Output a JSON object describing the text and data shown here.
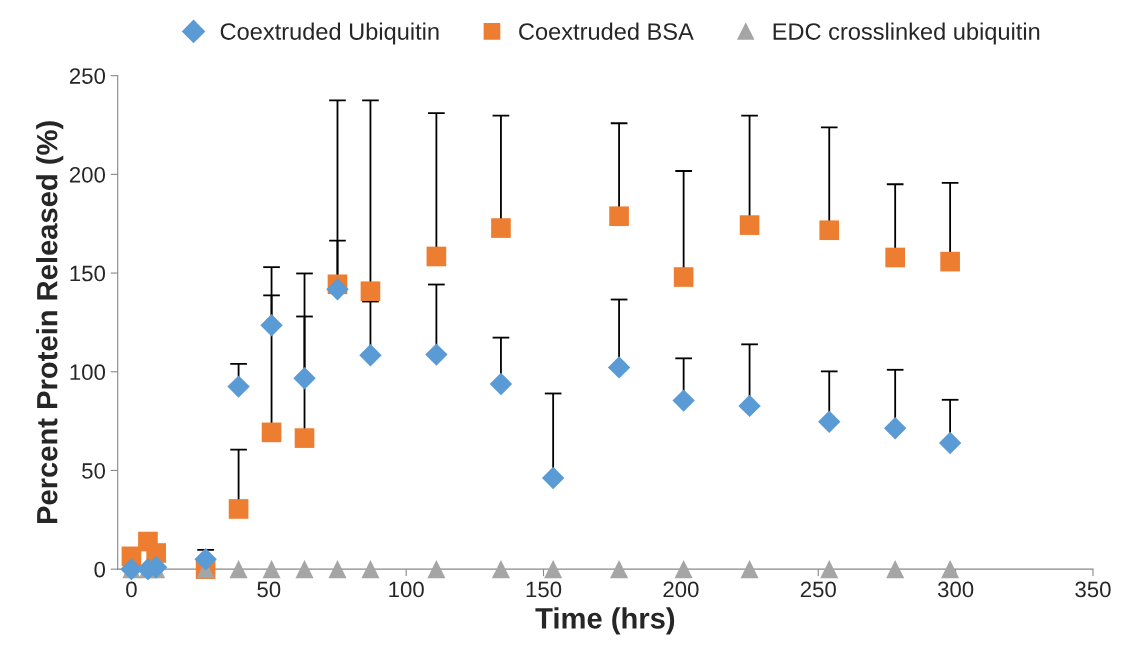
{
  "chart_data": {
    "type": "scatter",
    "xlabel": "Time (hrs)",
    "ylabel": "Percent Protein Released (%)",
    "x": [
      0,
      6,
      9,
      27,
      39,
      51,
      63,
      75,
      87,
      111,
      134.5,
      153.5,
      177.5,
      201,
      225,
      254,
      278,
      298
    ],
    "series": [
      {
        "name": "Coextruded Ubiquitin",
        "color": "#5b9bd5",
        "marker": "diamond",
        "values": [
          0,
          0,
          1,
          5,
          92.5,
          123.6,
          96.7,
          141.8,
          108.4,
          108.7,
          93.8,
          46.2,
          102.2,
          85.4,
          82.7,
          74.7,
          71.4,
          63.9
        ],
        "errors": [
          null,
          null,
          null,
          [
            5,
            9.8
          ],
          [
            92.5,
            104
          ],
          [
            123.6,
            138.7
          ],
          [
            96.7,
            128
          ],
          [
            141.8,
            166.4
          ],
          [
            108.4,
            135.6
          ],
          [
            108.7,
            144.2
          ],
          [
            93.8,
            117.3
          ],
          [
            46.2,
            89
          ],
          [
            102.2,
            136.6
          ],
          [
            85.4,
            106.8
          ],
          [
            82.7,
            113.9
          ],
          [
            74.7,
            100.2
          ],
          [
            71.4,
            101
          ],
          [
            63.9,
            85.8
          ]
        ]
      },
      {
        "name": "Coextruded BSA",
        "color": "#ed7d31",
        "marker": "square",
        "values": [
          6.5,
          14,
          8.2,
          0,
          30.5,
          69.3,
          66.4,
          144.3,
          140.8,
          158.4,
          172.8,
          null,
          178.8,
          148,
          174.3,
          171.7,
          157.9,
          155.8
        ],
        "errors": [
          null,
          null,
          null,
          null,
          [
            30.5,
            60.6
          ],
          [
            69.3,
            153
          ],
          [
            66.4,
            149.8
          ],
          [
            144.3,
            237.5
          ],
          [
            140.8,
            237.5
          ],
          [
            158.4,
            231
          ],
          [
            172.8,
            229.8
          ],
          null,
          [
            178.8,
            225.9
          ],
          [
            148,
            201.7
          ],
          [
            174.3,
            229.8
          ],
          [
            171.7,
            223.8
          ],
          [
            157.9,
            195
          ],
          [
            155.8,
            195.7
          ]
        ]
      },
      {
        "name": "EDC crosslinked ubiquitin",
        "color": "#a5a5a5",
        "marker": "triangle",
        "values": [
          0,
          0,
          0,
          0,
          0,
          0,
          0,
          0,
          0,
          0,
          0,
          0,
          0,
          0,
          0,
          0,
          0,
          0
        ]
      }
    ],
    "xlim": [
      -5,
      350
    ],
    "xticks": [
      0,
      50,
      100,
      150,
      200,
      250,
      300,
      350
    ],
    "ylim": [
      0,
      250
    ],
    "yticks": [
      0,
      50,
      100,
      150,
      200,
      250
    ],
    "grid": false,
    "legend": "top"
  }
}
